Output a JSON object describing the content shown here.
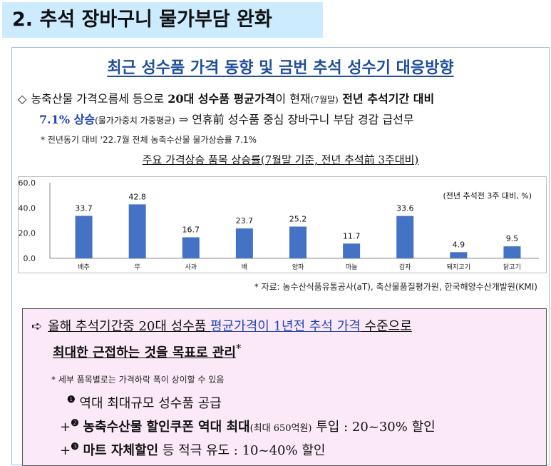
{
  "section": {
    "title": "2. 추석 장바구니 물가부담 완화"
  },
  "heading": "최근 성수품 가격 동향 및 금번 추석 성수기 대응방향",
  "para1": {
    "bullet": "◇",
    "a": "농축산물 가격오름세 등으로 ",
    "b": "20대 성수품 평균가격",
    "c": "이 현재",
    "d": "(7월말)",
    "e": " 전년 추석기간 대비",
    "f": "7.1% 상승",
    "g": "(물가가중치 가중평균)",
    "h": " ⇒ 연휴前 성수품 중심 장바구니 부담 경감 급선무"
  },
  "note1": "* 전년동기 대비 '22.7월 전체 농축수산물 물가상승률 7.1%",
  "chart_title": {
    "main": "주요 가격상승 품목 상승률",
    "sub": "(7월말 기준, 전년 추석前 3주대비)"
  },
  "chart_data": {
    "type": "bar",
    "categories": [
      "배추",
      "무",
      "사과",
      "배",
      "양파",
      "마늘",
      "감자",
      "돼지고기",
      "닭고기"
    ],
    "values": [
      33.7,
      42.8,
      16.7,
      23.7,
      25.2,
      11.7,
      33.6,
      4.9,
      9.5
    ],
    "value_labels": [
      "33.7",
      "42.8",
      "16.7",
      "23.7",
      "25.2",
      "11.7",
      "33.6",
      "4.9",
      "9.5"
    ],
    "y_ticks": [
      "60.0",
      "40.0",
      "20.0",
      "0.0"
    ],
    "ylim": [
      0,
      60
    ],
    "annotation": "(전년 추석전 3주 대비, %)",
    "bar_color": "#4472c4",
    "grid": false
  },
  "source": "* 자료: 농수산식품유통공사(aT), 축산물품질평가원, 한국해양수산개발원(KMI)",
  "box": {
    "arrow": "➪",
    "l1a": "올해 추석기간중 20대 성수품 ",
    "l1b": "평균가격이 1년전 추석 가격",
    "l1c": " 수준으로",
    "l2": "최대한 근접하는 것을 목표로 관리",
    "l2star": "*",
    "note": "* 세부 품목별로는 가격하락 폭이 상이할 수 있음",
    "item1_num": "❶",
    "item1": "역대 최대규모 성수품 공급",
    "item2_prefix": "+",
    "item2_num": "❷",
    "item2a": "농축수산물 할인쿠폰 역대 최대",
    "item2b": "(최대 650억원)",
    "item2c": " 투입 : 20~30% 할인",
    "item3_prefix": "+",
    "item3_num": "❸",
    "item3a": "마트 자체할인",
    "item3b": " 등 적극 유도 : 10~40% 할인"
  }
}
